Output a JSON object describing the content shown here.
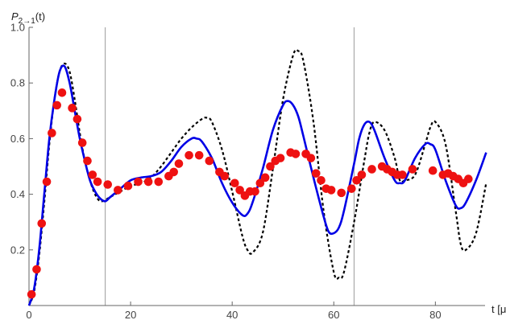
{
  "chart_data": {
    "type": "line",
    "ylabel_main": "P",
    "ylabel_sub": "2→1",
    "ylabel_tail": "(t)",
    "xlabel": "t [μs]",
    "xlim": [
      0,
      92
    ],
    "ylim": [
      0,
      1.0
    ],
    "x_ticks": [
      0,
      20,
      40,
      60,
      80
    ],
    "y_ticks": [
      0.2,
      0.4,
      0.6,
      0.8,
      1.0
    ],
    "y_tick_labels": [
      "0.2",
      "0.4",
      "0.6",
      "0.8",
      "1.0"
    ],
    "x_tick_labels": [
      "0",
      "20",
      "40",
      "60",
      "80"
    ],
    "vertical_lines": [
      15,
      64
    ],
    "colors": {
      "blue_curve": "#0000e6",
      "black_dashed": "#000000",
      "red_points": "#ee1111",
      "vertical_lines": "#aaaaaa"
    },
    "series": [
      {
        "style": "solid",
        "x": [
          0,
          1,
          2,
          3,
          4,
          5,
          6,
          7,
          8,
          9,
          10,
          11,
          12,
          13,
          14,
          15,
          16,
          18,
          20,
          22,
          24,
          26,
          28,
          30,
          32,
          33,
          34,
          36,
          38,
          40,
          42,
          43,
          44,
          46,
          48,
          50,
          51,
          52,
          53,
          54,
          56,
          58,
          59,
          60,
          61,
          62,
          64,
          65,
          66,
          67,
          68,
          70,
          72,
          73,
          74,
          76,
          78,
          79,
          80,
          82,
          84,
          85,
          86,
          88,
          90
        ],
        "y": [
          0,
          0.06,
          0.2,
          0.4,
          0.6,
          0.74,
          0.84,
          0.86,
          0.8,
          0.7,
          0.6,
          0.52,
          0.45,
          0.41,
          0.385,
          0.375,
          0.39,
          0.42,
          0.45,
          0.46,
          0.465,
          0.48,
          0.52,
          0.57,
          0.6,
          0.6,
          0.59,
          0.53,
          0.44,
          0.37,
          0.325,
          0.33,
          0.37,
          0.49,
          0.63,
          0.72,
          0.735,
          0.72,
          0.68,
          0.61,
          0.46,
          0.32,
          0.265,
          0.26,
          0.28,
          0.34,
          0.51,
          0.6,
          0.65,
          0.66,
          0.63,
          0.53,
          0.45,
          0.44,
          0.45,
          0.53,
          0.58,
          0.58,
          0.56,
          0.45,
          0.36,
          0.35,
          0.37,
          0.45,
          0.55
        ]
      },
      {
        "style": "dashed",
        "x": [
          0,
          1,
          2,
          3,
          4,
          5,
          6,
          7,
          8,
          9,
          10,
          11,
          12,
          13,
          14,
          15,
          16,
          18,
          20,
          22,
          24,
          26,
          28,
          30,
          32,
          34,
          35,
          36,
          38,
          40,
          42,
          43,
          44,
          46,
          48,
          50,
          52,
          53,
          54,
          56,
          58,
          60,
          61,
          62,
          64,
          66,
          67,
          68,
          70,
          72,
          73,
          74,
          76,
          78,
          79,
          80,
          82,
          84,
          85,
          86,
          88,
          90
        ],
        "y": [
          0,
          0.05,
          0.18,
          0.37,
          0.58,
          0.74,
          0.84,
          0.87,
          0.84,
          0.74,
          0.62,
          0.52,
          0.45,
          0.4,
          0.375,
          0.38,
          0.39,
          0.41,
          0.43,
          0.44,
          0.46,
          0.5,
          0.55,
          0.6,
          0.64,
          0.67,
          0.675,
          0.66,
          0.56,
          0.41,
          0.25,
          0.2,
          0.19,
          0.26,
          0.49,
          0.74,
          0.9,
          0.915,
          0.88,
          0.66,
          0.34,
          0.12,
          0.1,
          0.12,
          0.3,
          0.52,
          0.62,
          0.66,
          0.63,
          0.53,
          0.45,
          0.45,
          0.47,
          0.58,
          0.64,
          0.66,
          0.58,
          0.34,
          0.22,
          0.2,
          0.26,
          0.44
        ]
      },
      {
        "style": "points",
        "x": [
          0.5,
          1.5,
          2.5,
          3.5,
          4.5,
          5.5,
          6.5,
          8.5,
          9.5,
          10.5,
          11.5,
          12.5,
          13.5,
          15.5,
          17.5,
          19.5,
          21.5,
          23.5,
          25.5,
          27.5,
          28.5,
          29.5,
          31.5,
          33.5,
          35.5,
          37.5,
          38.5,
          40.5,
          41.5,
          42.5,
          43.5,
          44.5,
          45.5,
          46.5,
          47.5,
          48.5,
          49.5,
          51.5,
          52.5,
          54.5,
          55.5,
          56.5,
          57.5,
          58.5,
          59.5,
          61.5,
          63.5,
          64.5,
          65.5,
          67.5,
          69.5,
          70.5,
          71.5,
          72.5,
          73.5,
          75.5,
          79.5,
          81.5,
          82.5,
          83.5,
          84.5,
          85.5,
          86.5
        ],
        "y": [
          0.04,
          0.13,
          0.295,
          0.445,
          0.62,
          0.72,
          0.765,
          0.71,
          0.67,
          0.585,
          0.52,
          0.47,
          0.445,
          0.435,
          0.415,
          0.43,
          0.445,
          0.445,
          0.445,
          0.465,
          0.48,
          0.51,
          0.54,
          0.54,
          0.52,
          0.48,
          0.465,
          0.44,
          0.415,
          0.395,
          0.41,
          0.41,
          0.44,
          0.46,
          0.5,
          0.52,
          0.53,
          0.55,
          0.545,
          0.545,
          0.53,
          0.475,
          0.45,
          0.42,
          0.415,
          0.405,
          0.42,
          0.45,
          0.47,
          0.49,
          0.5,
          0.49,
          0.48,
          0.47,
          0.47,
          0.49,
          0.485,
          0.47,
          0.475,
          0.465,
          0.455,
          0.44,
          0.455
        ]
      }
    ]
  }
}
